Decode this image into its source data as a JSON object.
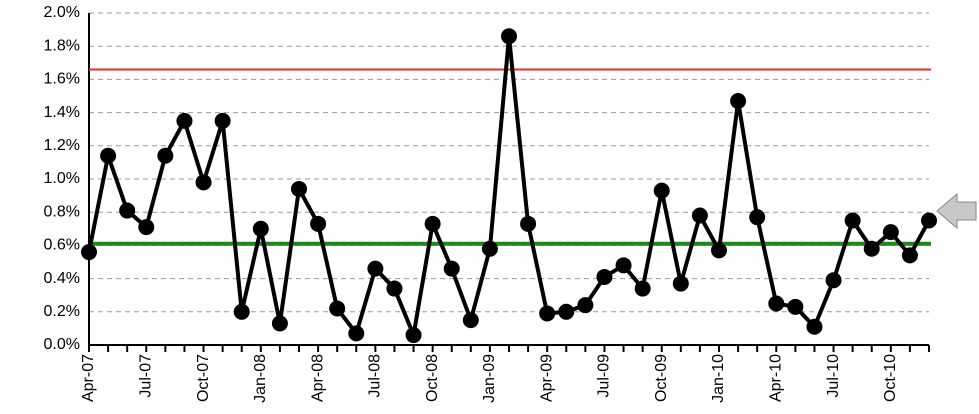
{
  "chart_data": {
    "type": "line",
    "categories": [
      "Apr-07",
      null,
      null,
      "Jul-07",
      null,
      null,
      "Oct-07",
      null,
      null,
      "Jan-08",
      null,
      null,
      "Apr-08",
      null,
      null,
      "Jul-08",
      null,
      null,
      "Oct-08",
      null,
      null,
      "Jan-09",
      null,
      null,
      "Apr-09",
      null,
      null,
      "Jul-09",
      null,
      null,
      "Oct-09",
      null,
      null,
      "Jan-10",
      null,
      null,
      "Apr-10",
      null,
      null,
      "Jul-10",
      null,
      null,
      "Oct-10",
      null,
      null
    ],
    "series": [
      {
        "color": "#000000",
        "values": [
          0.56,
          1.14,
          0.81,
          0.71,
          1.14,
          1.35,
          0.98,
          1.35,
          0.2,
          0.7,
          0.13,
          0.94,
          0.73,
          0.22,
          0.07,
          0.46,
          0.34,
          0.06,
          0.73,
          0.46,
          0.15,
          0.58,
          1.86,
          0.73,
          0.19,
          0.2,
          0.24,
          0.41,
          0.48,
          0.34,
          0.93,
          0.37,
          0.78,
          0.57,
          1.47,
          0.77,
          0.25,
          0.23,
          0.11,
          0.39,
          0.75,
          0.58,
          0.68,
          0.54,
          0.75
        ]
      }
    ],
    "reference_lines": [
      {
        "value": 1.66,
        "color": "#e03030"
      },
      {
        "value": 0.61,
        "color": "#1a8a1a"
      }
    ],
    "ylim": [
      0,
      2.0
    ],
    "yticks": [
      {
        "value": 0,
        "label": "0.0%"
      },
      {
        "value": 0.2,
        "label": "0.2%"
      },
      {
        "value": 0.4,
        "label": "0.4%"
      },
      {
        "value": 0.6,
        "label": "0.6%"
      },
      {
        "value": 0.8,
        "label": "0.8%"
      },
      {
        "value": 1.0,
        "label": "1.0%"
      },
      {
        "value": 1.2,
        "label": "1.2%"
      },
      {
        "value": 1.4,
        "label": "1.4%"
      },
      {
        "value": 1.6,
        "label": "1.6%"
      },
      {
        "value": 1.8,
        "label": "1.8%"
      },
      {
        "value": 2.0,
        "label": "2.0%"
      }
    ],
    "grid": true
  }
}
